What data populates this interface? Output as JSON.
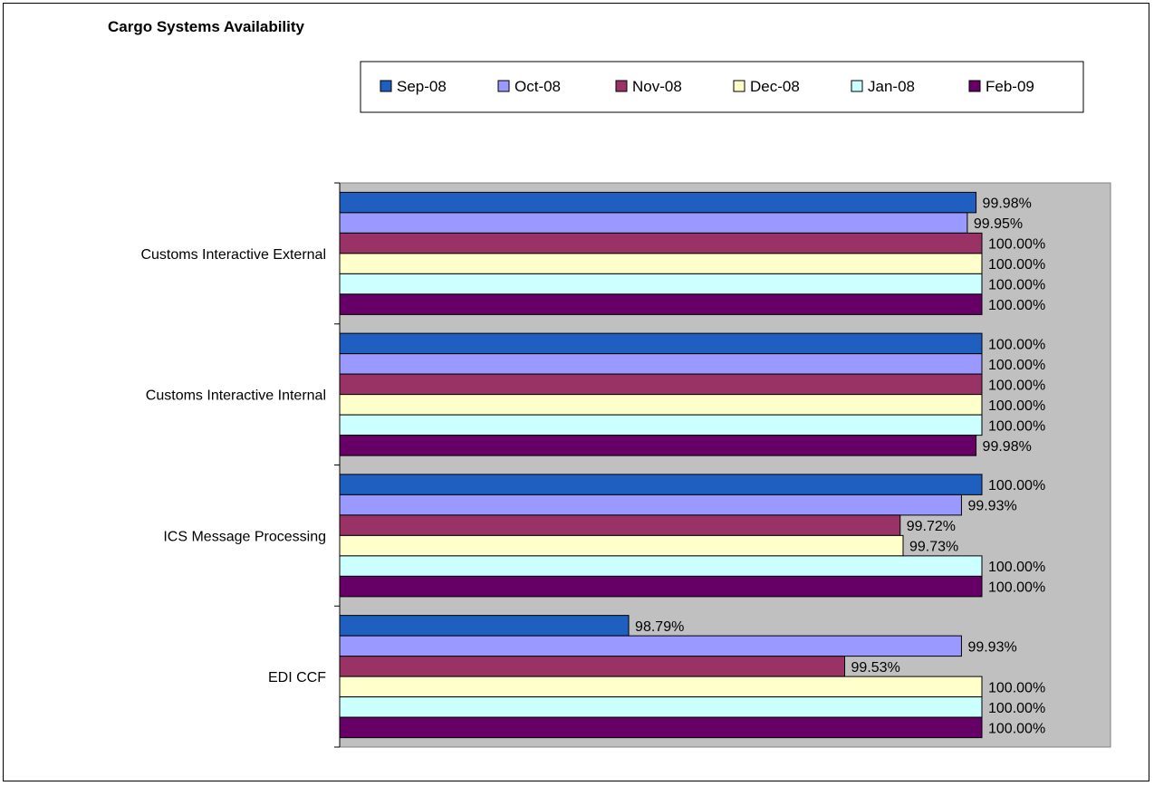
{
  "chart_data": {
    "type": "bar",
    "orientation": "horizontal",
    "title": "Cargo Systems Availability",
    "categories": [
      "Customs Interactive External",
      "Customs Interactive Internal",
      "ICS Message Processing",
      "EDI CCF"
    ],
    "series": [
      {
        "name": "Sep-08",
        "color": "#1f5fbf",
        "values": [
          99.98,
          100.0,
          100.0,
          98.79
        ]
      },
      {
        "name": "Oct-08",
        "color": "#9999ff",
        "values": [
          99.95,
          100.0,
          99.93,
          99.93
        ]
      },
      {
        "name": "Nov-08",
        "color": "#993366",
        "values": [
          100.0,
          100.0,
          99.72,
          99.53
        ]
      },
      {
        "name": "Dec-08",
        "color": "#ffffcc",
        "values": [
          100.0,
          100.0,
          99.73,
          100.0
        ]
      },
      {
        "name": "Jan-08",
        "color": "#ccffff",
        "values": [
          100.0,
          100.0,
          100.0,
          100.0
        ]
      },
      {
        "name": "Feb-09",
        "color": "#660066",
        "values": [
          100.0,
          99.98,
          100.0,
          100.0
        ]
      }
    ],
    "xlim": [
      97.8,
      100.0
    ],
    "value_unit": "%",
    "value_decimals": 2,
    "plot_background": "#c0c0c0",
    "legend_position": "top",
    "grid": false
  }
}
